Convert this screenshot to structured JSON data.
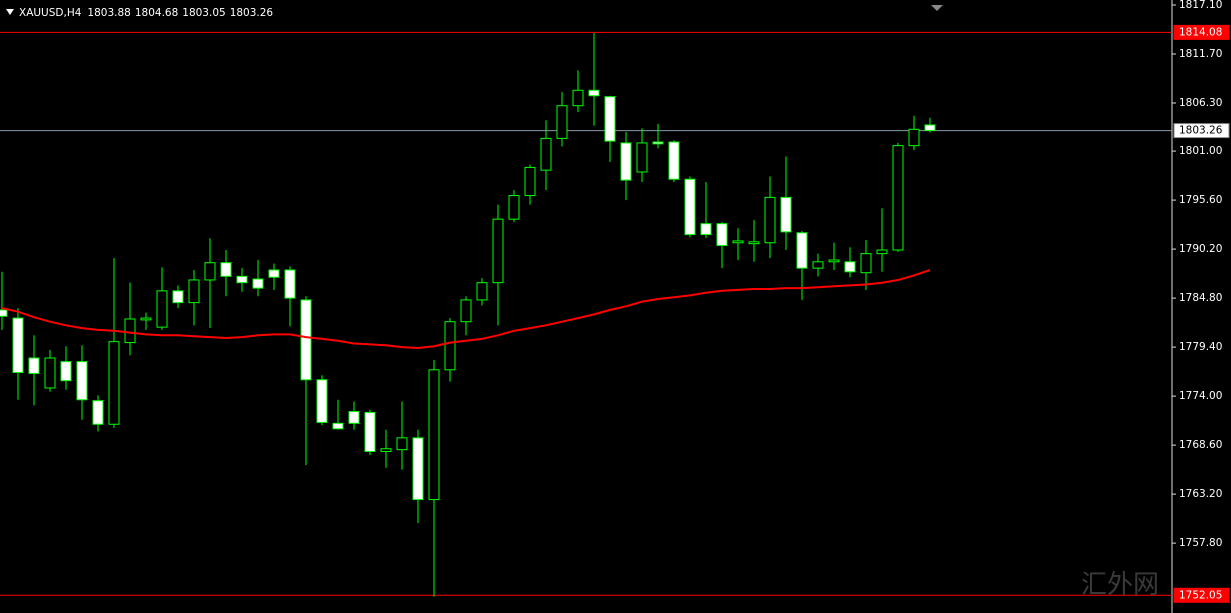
{
  "chart_data": {
    "type": "candlestick",
    "symbol": "XAUUSD,H4",
    "ylim": [
      1750.1,
      1817.65
    ],
    "yticks": [
      {
        "value": 1817.1,
        "label": "1817.10"
      },
      {
        "value": 1811.7,
        "label": "1811.70"
      },
      {
        "value": 1806.3,
        "label": "1806.30"
      },
      {
        "value": 1801,
        "label": "1801.00"
      },
      {
        "value": 1795.6,
        "label": "1795.60"
      },
      {
        "value": 1790.2,
        "label": "1790.20"
      },
      {
        "value": 1784.8,
        "label": "1784.80"
      },
      {
        "value": 1779.4,
        "label": "1779.40"
      },
      {
        "value": 1774,
        "label": "1774.00"
      },
      {
        "value": 1768.6,
        "label": "1768.60"
      },
      {
        "value": 1763.2,
        "label": "1763.20"
      },
      {
        "value": 1757.8,
        "label": "1757.80"
      }
    ],
    "bull_color": "#00ff00",
    "bear_color": "#ffffff",
    "open": [
      1783.5,
      1782.6,
      1778.2,
      1774.9,
      1777.8,
      1777.8,
      1773.5,
      1770.9,
      1779.9,
      1782.4,
      1781.6,
      1785.6,
      1784.3,
      1786.8,
      1788.7,
      1787.2,
      1786.9,
      1787.9,
      1787.9,
      1784.6,
      1775.8,
      1771.0,
      1772.3,
      1772.2,
      1767.9,
      1768.1,
      1769.4,
      1762.6,
      1776.9,
      1782.2,
      1784.6,
      1786.5,
      1793.5,
      1796.1,
      1798.9,
      1802.4,
      1806.0,
      1807.7,
      1807.0,
      1801.9,
      1798.7,
      1802.0,
      1802.0,
      1797.9,
      1793.0,
      1793.0,
      1790.9,
      1790.8,
      1790.9,
      1795.9,
      1792.0,
      1788.1,
      1788.8,
      1788.8,
      1787.6,
      1789.7,
      1790.1,
      1801.6,
      1803.88
    ],
    "high": [
      1787.7,
      1783.7,
      1780.7,
      1779.1,
      1779.5,
      1779.6,
      1774.1,
      1789.2,
      1786.5,
      1783.2,
      1788.2,
      1786.2,
      1787.9,
      1791.4,
      1790.1,
      1788.1,
      1789.0,
      1788.6,
      1788.3,
      1785.0,
      1776.3,
      1773.6,
      1773.4,
      1772.5,
      1770.3,
      1773.4,
      1770.3,
      1778.0,
      1782.6,
      1785.0,
      1787.0,
      1795.1,
      1796.7,
      1799.5,
      1804.4,
      1807.5,
      1809.9,
      1814.0,
      1807.1,
      1803.1,
      1803.5,
      1804.0,
      1802.2,
      1798.2,
      1797.6,
      1793.2,
      1792.5,
      1793.4,
      1798.2,
      1800.4,
      1792.2,
      1789.7,
      1790.9,
      1790.4,
      1791.2,
      1794.7,
      1801.9,
      1804.9,
      1804.68
    ],
    "low": [
      1781.3,
      1773.6,
      1773.0,
      1774.5,
      1774.7,
      1771.4,
      1770.1,
      1770.5,
      1778.5,
      1781.3,
      1781.3,
      1783.7,
      1781.8,
      1781.5,
      1785.0,
      1785.5,
      1785.0,
      1785.7,
      1781.7,
      1766.4,
      1770.8,
      1770.3,
      1770.3,
      1767.5,
      1766.1,
      1765.9,
      1760.0,
      1751.9,
      1775.6,
      1780.7,
      1784.0,
      1781.8,
      1793.2,
      1795.1,
      1796.7,
      1801.5,
      1805.3,
      1803.8,
      1799.8,
      1795.6,
      1797.6,
      1801.3,
      1797.6,
      1791.5,
      1791.4,
      1788.1,
      1789.0,
      1788.8,
      1789.2,
      1790.1,
      1784.6,
      1787.2,
      1787.9,
      1787.1,
      1785.7,
      1787.7,
      1789.9,
      1801.1,
      1803.05
    ],
    "close": [
      1782.8,
      1776.6,
      1776.5,
      1778.2,
      1775.7,
      1773.6,
      1770.9,
      1780.0,
      1782.5,
      1782.6,
      1785.6,
      1784.3,
      1786.8,
      1788.7,
      1787.2,
      1786.5,
      1785.9,
      1787.1,
      1784.8,
      1775.8,
      1771.1,
      1770.4,
      1771.0,
      1767.9,
      1768.2,
      1769.4,
      1762.6,
      1776.9,
      1782.2,
      1784.6,
      1786.5,
      1793.5,
      1796.1,
      1799.2,
      1802.4,
      1806.0,
      1807.7,
      1807.1,
      1802.1,
      1797.8,
      1801.9,
      1801.8,
      1797.9,
      1791.8,
      1791.8,
      1790.6,
      1791.1,
      1791.0,
      1795.9,
      1792.1,
      1788.1,
      1788.8,
      1789.0,
      1787.7,
      1789.7,
      1790.1,
      1801.6,
      1803.4,
      1803.26
    ],
    "moving_average": {
      "color": "#ff0000",
      "values": [
        1783.7,
        1783.3,
        1782.7,
        1782.2,
        1781.8,
        1781.5,
        1781.3,
        1781.2,
        1781.0,
        1780.8,
        1780.7,
        1780.7,
        1780.6,
        1780.5,
        1780.4,
        1780.5,
        1780.7,
        1780.8,
        1780.8,
        1780.5,
        1780.3,
        1780.1,
        1779.8,
        1779.7,
        1779.6,
        1779.4,
        1779.3,
        1779.5,
        1779.9,
        1780.1,
        1780.3,
        1780.7,
        1781.2,
        1781.5,
        1781.8,
        1782.2,
        1782.6,
        1783.0,
        1783.5,
        1783.9,
        1784.4,
        1784.7,
        1784.9,
        1785.1,
        1785.4,
        1785.6,
        1785.7,
        1785.8,
        1785.8,
        1785.9,
        1785.9,
        1786.0,
        1786.1,
        1786.2,
        1786.3,
        1786.5,
        1786.8,
        1787.3,
        1787.9
      ]
    },
    "hlines": [
      {
        "value": 1814.08,
        "color": "#ff0000"
      },
      {
        "value": 1803.26,
        "color": "#8899aa"
      },
      {
        "value": 1752.05,
        "color": "#ff0000"
      }
    ],
    "watermark": "汇外网"
  }
}
